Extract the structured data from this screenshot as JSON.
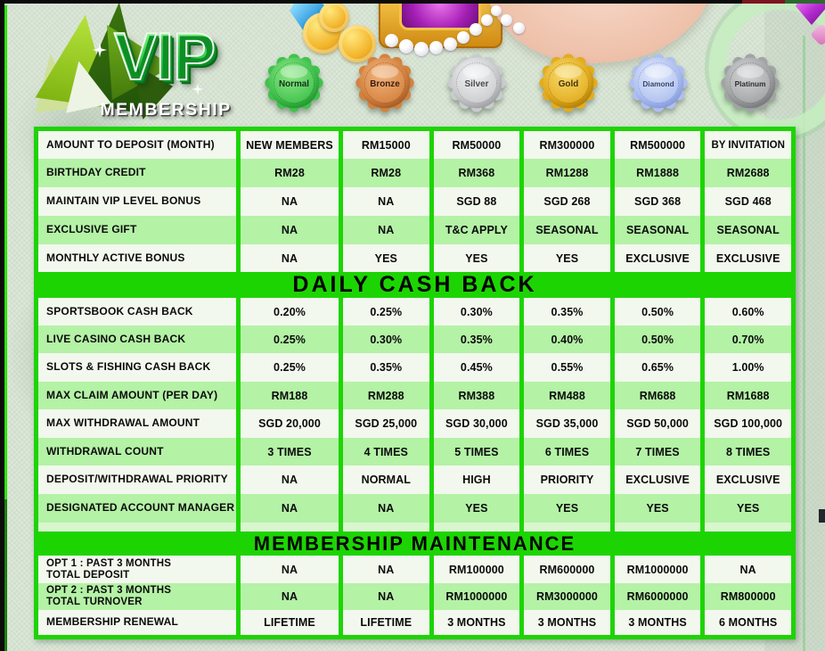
{
  "logo": {
    "title": "VIP",
    "subtitle": "MEMBERSHIP"
  },
  "tiers": [
    {
      "label": "Normal",
      "base": "#41c24d",
      "light": "#90e98a",
      "dark": "#1f8c2a",
      "text": "#15301a",
      "small": false
    },
    {
      "label": "Bronze",
      "base": "#d4823f",
      "light": "#f2b57e",
      "dark": "#9c5420",
      "text": "#3a1c0c",
      "small": false
    },
    {
      "label": "Silver",
      "base": "#c9cbcd",
      "light": "#f3f4f5",
      "dark": "#94969a",
      "text": "#4a4a4a",
      "small": false
    },
    {
      "label": "Gold",
      "base": "#e3ac1f",
      "light": "#f8dc6e",
      "dark": "#a87606",
      "text": "#46320a",
      "small": false
    },
    {
      "label": "Diamond",
      "base": "#aebff0",
      "light": "#e3ebfc",
      "dark": "#7b93d6",
      "text": "#36466b",
      "small": true
    },
    {
      "label": "Platinum",
      "base": "#a2a3a5",
      "light": "#d6d7d9",
      "dark": "#6e6f72",
      "text": "#2d2d2d",
      "small": true
    }
  ],
  "table": {
    "sections": [
      {
        "header": null,
        "rows": [
          {
            "label": "AMOUNT TO DEPOSIT (MONTH)",
            "values": [
              "NEW MEMBERS",
              "RM15000",
              "RM50000",
              "RM300000",
              "RM500000",
              "BY INVITATION"
            ]
          },
          {
            "label": "BIRTHDAY CREDIT",
            "values": [
              "RM28",
              "RM28",
              "RM368",
              "RM1288",
              "RM1888",
              "RM2688"
            ]
          },
          {
            "label": "MAINTAIN VIP LEVEL BONUS",
            "values": [
              "NA",
              "NA",
              "SGD 88",
              "SGD 268",
              "SGD 368",
              "SGD 468"
            ]
          },
          {
            "label": "EXCLUSIVE GIFT",
            "values": [
              "NA",
              "NA",
              "T&C APPLY",
              "SEASONAL",
              "SEASONAL",
              "SEASONAL"
            ]
          },
          {
            "label": "MONTHLY ACTIVE BONUS",
            "values": [
              "NA",
              "YES",
              "YES",
              "YES",
              "EXCLUSIVE",
              "EXCLUSIVE"
            ]
          }
        ]
      },
      {
        "header": "DAILY CASH BACK",
        "rows": [
          {
            "label": "SPORTSBOOK CASH BACK",
            "values": [
              "0.20%",
              "0.25%",
              "0.30%",
              "0.35%",
              "0.50%",
              "0.60%"
            ]
          },
          {
            "label": "LIVE CASINO CASH BACK",
            "values": [
              "0.25%",
              "0.30%",
              "0.35%",
              "0.40%",
              "0.50%",
              "0.70%"
            ]
          },
          {
            "label": "SLOTS & FISHING CASH BACK",
            "values": [
              "0.25%",
              "0.35%",
              "0.45%",
              "0.55%",
              "0.65%",
              "1.00%"
            ]
          },
          {
            "label": "MAX CLAIM AMOUNT (PER DAY)",
            "values": [
              "RM188",
              "RM288",
              "RM388",
              "RM488",
              "RM688",
              "RM1688"
            ]
          },
          {
            "label": "MAX WITHDRAWAL AMOUNT",
            "values": [
              "SGD 20,000",
              "SGD 25,000",
              "SGD 30,000",
              "SGD 35,000",
              "SGD 50,000",
              "SGD 100,000"
            ]
          },
          {
            "label": "WITHDRAWAL COUNT",
            "values": [
              "3 TIMES",
              "4 TIMES",
              "5 TIMES",
              "6 TIMES",
              "7 TIMES",
              "8 TIMES"
            ]
          },
          {
            "label": "DEPOSIT/WITHDRAWAL PRIORITY",
            "values": [
              "NA",
              "NORMAL",
              "HIGH",
              "PRIORITY",
              "EXCLUSIVE",
              "EXCLUSIVE"
            ]
          },
          {
            "label": "DESIGNATED ACCOUNT MANAGER",
            "values": [
              "NA",
              "NA",
              "YES",
              "YES",
              "YES",
              "YES"
            ]
          }
        ]
      },
      {
        "header": "MEMBERSHIP MAINTENANCE",
        "rows": [
          {
            "label": "OPT 1 : PAST 3 MONTHS\nTOTAL DEPOSIT",
            "values": [
              "NA",
              "NA",
              "RM100000",
              "RM600000",
              "RM1000000",
              "NA"
            ]
          },
          {
            "label": "OPT 2 : PAST 3 MONTHS\nTOTAL TURNOVER",
            "values": [
              "NA",
              "NA",
              "RM1000000",
              "RM3000000",
              "RM6000000",
              "RM800000"
            ]
          },
          {
            "label": "MEMBERSHIP RENEWAL",
            "values": [
              "LIFETIME",
              "LIFETIME",
              "3 MONTHS",
              "3 MONTHS",
              "3 MONTHS",
              "6 MONTHS"
            ]
          }
        ]
      }
    ]
  },
  "colors": {
    "accent_green": "#1dd403",
    "row_light": "#b4f2a6",
    "row_white": "#f3f8ee",
    "spacer": "#d9f6cf"
  }
}
